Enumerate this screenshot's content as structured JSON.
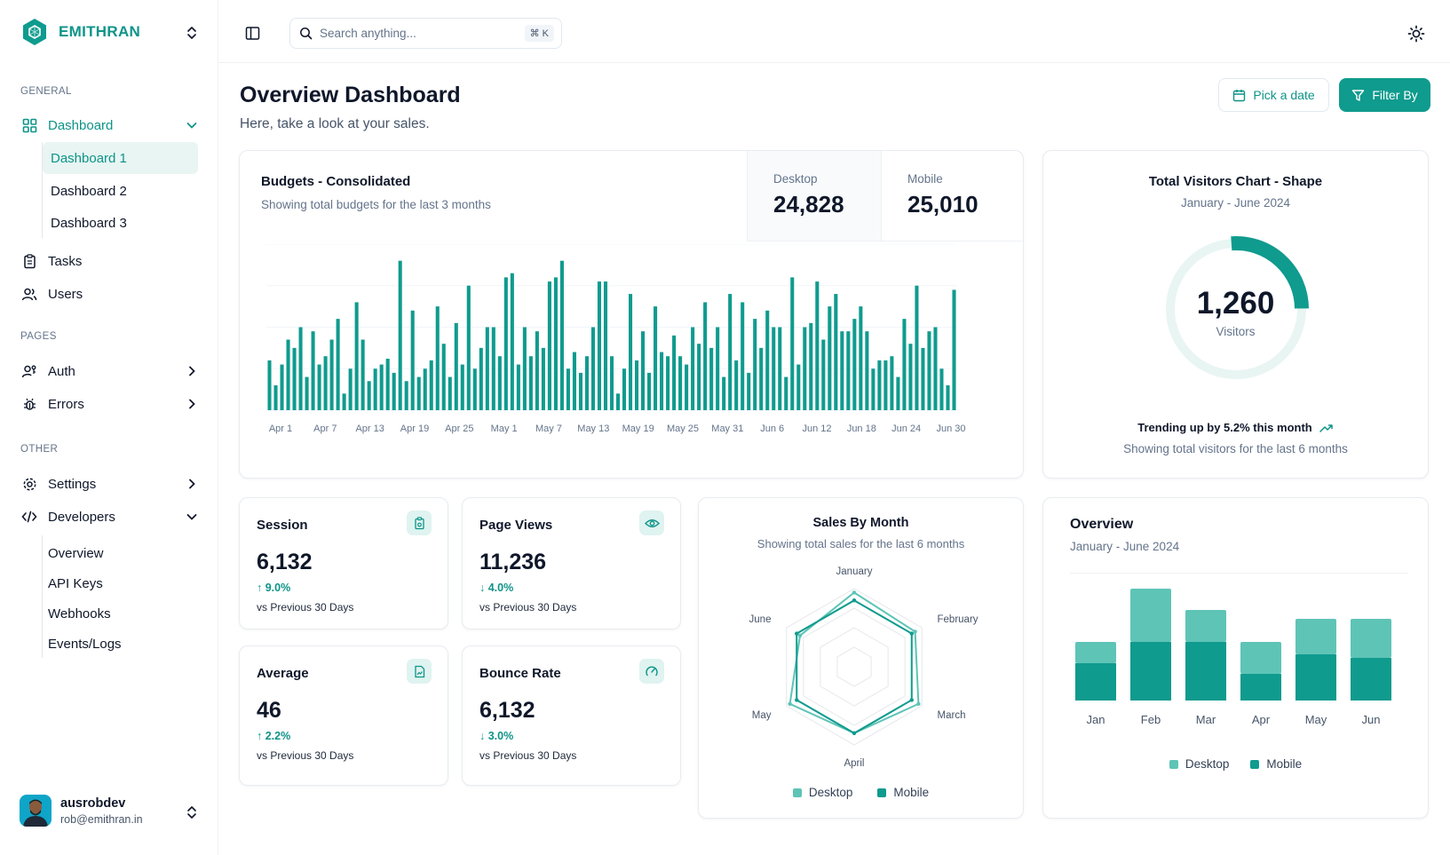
{
  "brand": {
    "name": "EMITHRAN"
  },
  "sidebar": {
    "general_label": "GENERAL",
    "dashboard_label": "Dashboard",
    "dashboard_items": [
      "Dashboard 1",
      "Dashboard 2",
      "Dashboard 3"
    ],
    "tasks_label": "Tasks",
    "users_label": "Users",
    "pages_label": "PAGES",
    "auth_label": "Auth",
    "errors_label": "Errors",
    "other_label": "OTHER",
    "settings_label": "Settings",
    "developers_label": "Developers",
    "developer_items": [
      "Overview",
      "API Keys",
      "Webhooks",
      "Events/Logs"
    ]
  },
  "user": {
    "name": "ausrobdev",
    "email": "rob@emithran.in"
  },
  "search": {
    "placeholder": "Search anything...",
    "shortcut": "⌘ K"
  },
  "header": {
    "title": "Overview Dashboard",
    "subtitle": "Here, take a look at your sales.",
    "date_button": "Pick a date",
    "filter_button": "Filter By"
  },
  "budgets": {
    "title": "Budgets - Consolidated",
    "subtitle": "Showing total budgets for the last 3 months",
    "desktop_label": "Desktop",
    "desktop_value": "24,828",
    "mobile_label": "Mobile",
    "mobile_value": "25,010",
    "chart_data": {
      "type": "bar",
      "x_tick_labels": [
        "Apr 1",
        "Apr 7",
        "Apr 13",
        "Apr 19",
        "Apr 25",
        "May 1",
        "May 7",
        "May 13",
        "May 19",
        "May 25",
        "May 31",
        "Jun 6",
        "Jun 12",
        "Jun 18",
        "Jun 24",
        "Jun 30"
      ],
      "values": [
        60,
        30,
        55,
        85,
        75,
        100,
        40,
        95,
        55,
        65,
        85,
        110,
        20,
        50,
        130,
        85,
        35,
        50,
        55,
        62,
        45,
        180,
        35,
        120,
        40,
        50,
        60,
        125,
        80,
        40,
        105,
        55,
        150,
        50,
        75,
        100,
        100,
        65,
        160,
        165,
        55,
        100,
        65,
        95,
        75,
        155,
        160,
        180,
        50,
        70,
        45,
        65,
        100,
        155,
        155,
        65,
        20,
        50,
        140,
        60,
        95,
        45,
        125,
        70,
        65,
        90,
        65,
        55,
        100,
        80,
        130,
        75,
        100,
        40,
        140,
        60,
        130,
        45,
        110,
        75,
        120,
        100,
        100,
        40,
        160,
        55,
        100,
        105,
        155,
        85,
        125,
        140,
        95,
        95,
        110,
        125,
        95,
        50,
        60,
        60,
        65,
        40,
        110,
        80,
        150,
        75,
        95,
        100,
        50,
        30,
        145
      ],
      "ylim": [
        0,
        200
      ]
    }
  },
  "visitors": {
    "title": "Total Visitors Chart - Shape",
    "subtitle": "January - June 2024",
    "value": "1,260",
    "value_label": "Visitors",
    "trend": "Trending up by 5.2% this month",
    "note": "Showing total visitors for the last 6 months",
    "progress_fraction": 0.26
  },
  "kpis": [
    {
      "title": "Session",
      "value": "6,132",
      "change": "↑ 9.0%",
      "note": "vs Previous 30 Days"
    },
    {
      "title": "Page Views",
      "value": "11,236",
      "change": "↓ 4.0%",
      "note": "vs Previous 30 Days"
    },
    {
      "title": "Average",
      "value": "46",
      "change": "↑ 2.2%",
      "note": "vs Previous 30 Days"
    },
    {
      "title": "Bounce Rate",
      "value": "6,132",
      "change": "↓ 3.0%",
      "note": "vs Previous 30 Days"
    }
  ],
  "sales": {
    "title": "Sales By Month",
    "subtitle": "Showing total sales for the last 6 months",
    "chart_data": {
      "type": "radar",
      "categories": [
        "January",
        "February",
        "March",
        "April",
        "May",
        "June"
      ],
      "max": 100,
      "series": [
        {
          "name": "Desktop",
          "values": [
            95,
            90,
            95,
            85,
            95,
            80
          ]
        },
        {
          "name": "Mobile",
          "values": [
            85,
            85,
            85,
            85,
            85,
            85
          ]
        }
      ]
    },
    "legend": [
      "Desktop",
      "Mobile"
    ]
  },
  "overview": {
    "title": "Overview",
    "subtitle": "January - June 2024",
    "chart_data": {
      "type": "bar",
      "stacked": true,
      "categories": [
        "Jan",
        "Feb",
        "Mar",
        "Apr",
        "May",
        "Jun"
      ],
      "series": [
        {
          "name": "Mobile",
          "values": [
            42,
            66,
            66,
            30,
            52,
            48
          ]
        },
        {
          "name": "Desktop",
          "values": [
            24,
            60,
            36,
            36,
            40,
            44
          ]
        }
      ]
    },
    "legend": [
      "Desktop",
      "Mobile"
    ]
  },
  "colors": {
    "accent": "#0f9b8e",
    "accent_light": "#5ec4b6",
    "accent_bg": "#e8f5f3"
  }
}
